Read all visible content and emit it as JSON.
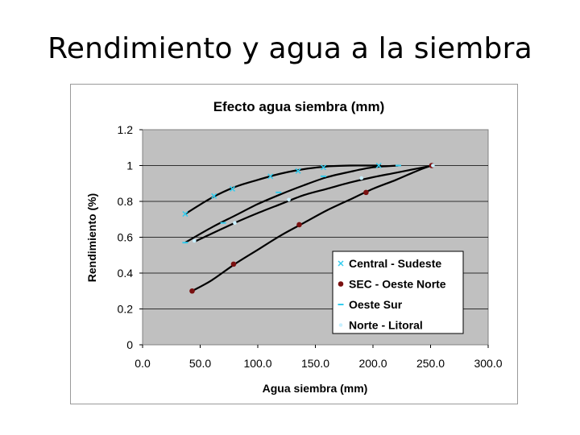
{
  "slide": {
    "title": "Rendimiento y agua a la siembra"
  },
  "chart_data": {
    "type": "scatter",
    "title": "Efecto agua siembra (mm)",
    "xlabel": "Agua siembra (mm)",
    "ylabel": "Rendimiento (%)",
    "xlim": [
      0,
      300
    ],
    "ylim": [
      0,
      1.2
    ],
    "x_ticks": [
      0,
      50,
      100,
      150,
      200,
      250,
      300
    ],
    "x_tick_labels": [
      "0.0",
      "50.0",
      "100.0",
      "150.0",
      "200.0",
      "250.0",
      "300.0"
    ],
    "y_ticks": [
      0,
      0.2,
      0.4,
      0.6,
      0.8,
      1.0,
      1.2
    ],
    "y_tick_labels": [
      "0",
      "0.2",
      "0.4",
      "0.6",
      "0.8",
      "1",
      "1.2"
    ],
    "grid": "horizontal",
    "legend_position": "bottom-right",
    "series": [
      {
        "name": "Central - Sudeste",
        "marker": "x",
        "color": "#33ccee",
        "x": [
          37,
          62,
          78,
          111,
          135,
          157,
          205
        ],
        "y": [
          0.73,
          0.83,
          0.87,
          0.94,
          0.97,
          0.99,
          1.0
        ],
        "trend_x": [
          37,
          60,
          80,
          100,
          120,
          140,
          160,
          180,
          200,
          207
        ],
        "trend_y": [
          0.73,
          0.82,
          0.88,
          0.92,
          0.955,
          0.98,
          0.995,
          1.0,
          1.0,
          1.0
        ]
      },
      {
        "name": "SEC - Oeste Norte",
        "marker": "circle",
        "color": "#7a1010",
        "x": [
          43,
          79,
          136,
          194,
          251
        ],
        "y": [
          0.3,
          0.45,
          0.67,
          0.85,
          1.0
        ],
        "trend_x": [
          43,
          60,
          80,
          100,
          120,
          140,
          160,
          180,
          200,
          220,
          240,
          251
        ],
        "trend_y": [
          0.3,
          0.36,
          0.45,
          0.53,
          0.61,
          0.68,
          0.75,
          0.81,
          0.87,
          0.92,
          0.975,
          1.0
        ]
      },
      {
        "name": "Oeste Sur",
        "marker": "dash",
        "color": "#33ccee",
        "x": [
          37,
          70,
          118,
          157,
          222
        ],
        "y": [
          0.57,
          0.68,
          0.85,
          0.94,
          1.0
        ],
        "trend_x": [
          37,
          60,
          80,
          100,
          120,
          140,
          160,
          180,
          200,
          222
        ],
        "trend_y": [
          0.57,
          0.655,
          0.72,
          0.785,
          0.84,
          0.89,
          0.935,
          0.965,
          0.99,
          1.0
        ]
      },
      {
        "name": "Norte - Litoral",
        "marker": "circle-small",
        "color": "#c8f0ff",
        "x": [
          45,
          80,
          127,
          190,
          252
        ],
        "y": [
          0.58,
          0.68,
          0.81,
          0.93,
          1.0
        ],
        "trend_x": [
          45,
          60,
          80,
          100,
          120,
          140,
          160,
          180,
          200,
          220,
          240,
          252
        ],
        "trend_y": [
          0.575,
          0.62,
          0.68,
          0.735,
          0.785,
          0.835,
          0.87,
          0.905,
          0.935,
          0.96,
          0.985,
          1.0
        ]
      }
    ]
  }
}
